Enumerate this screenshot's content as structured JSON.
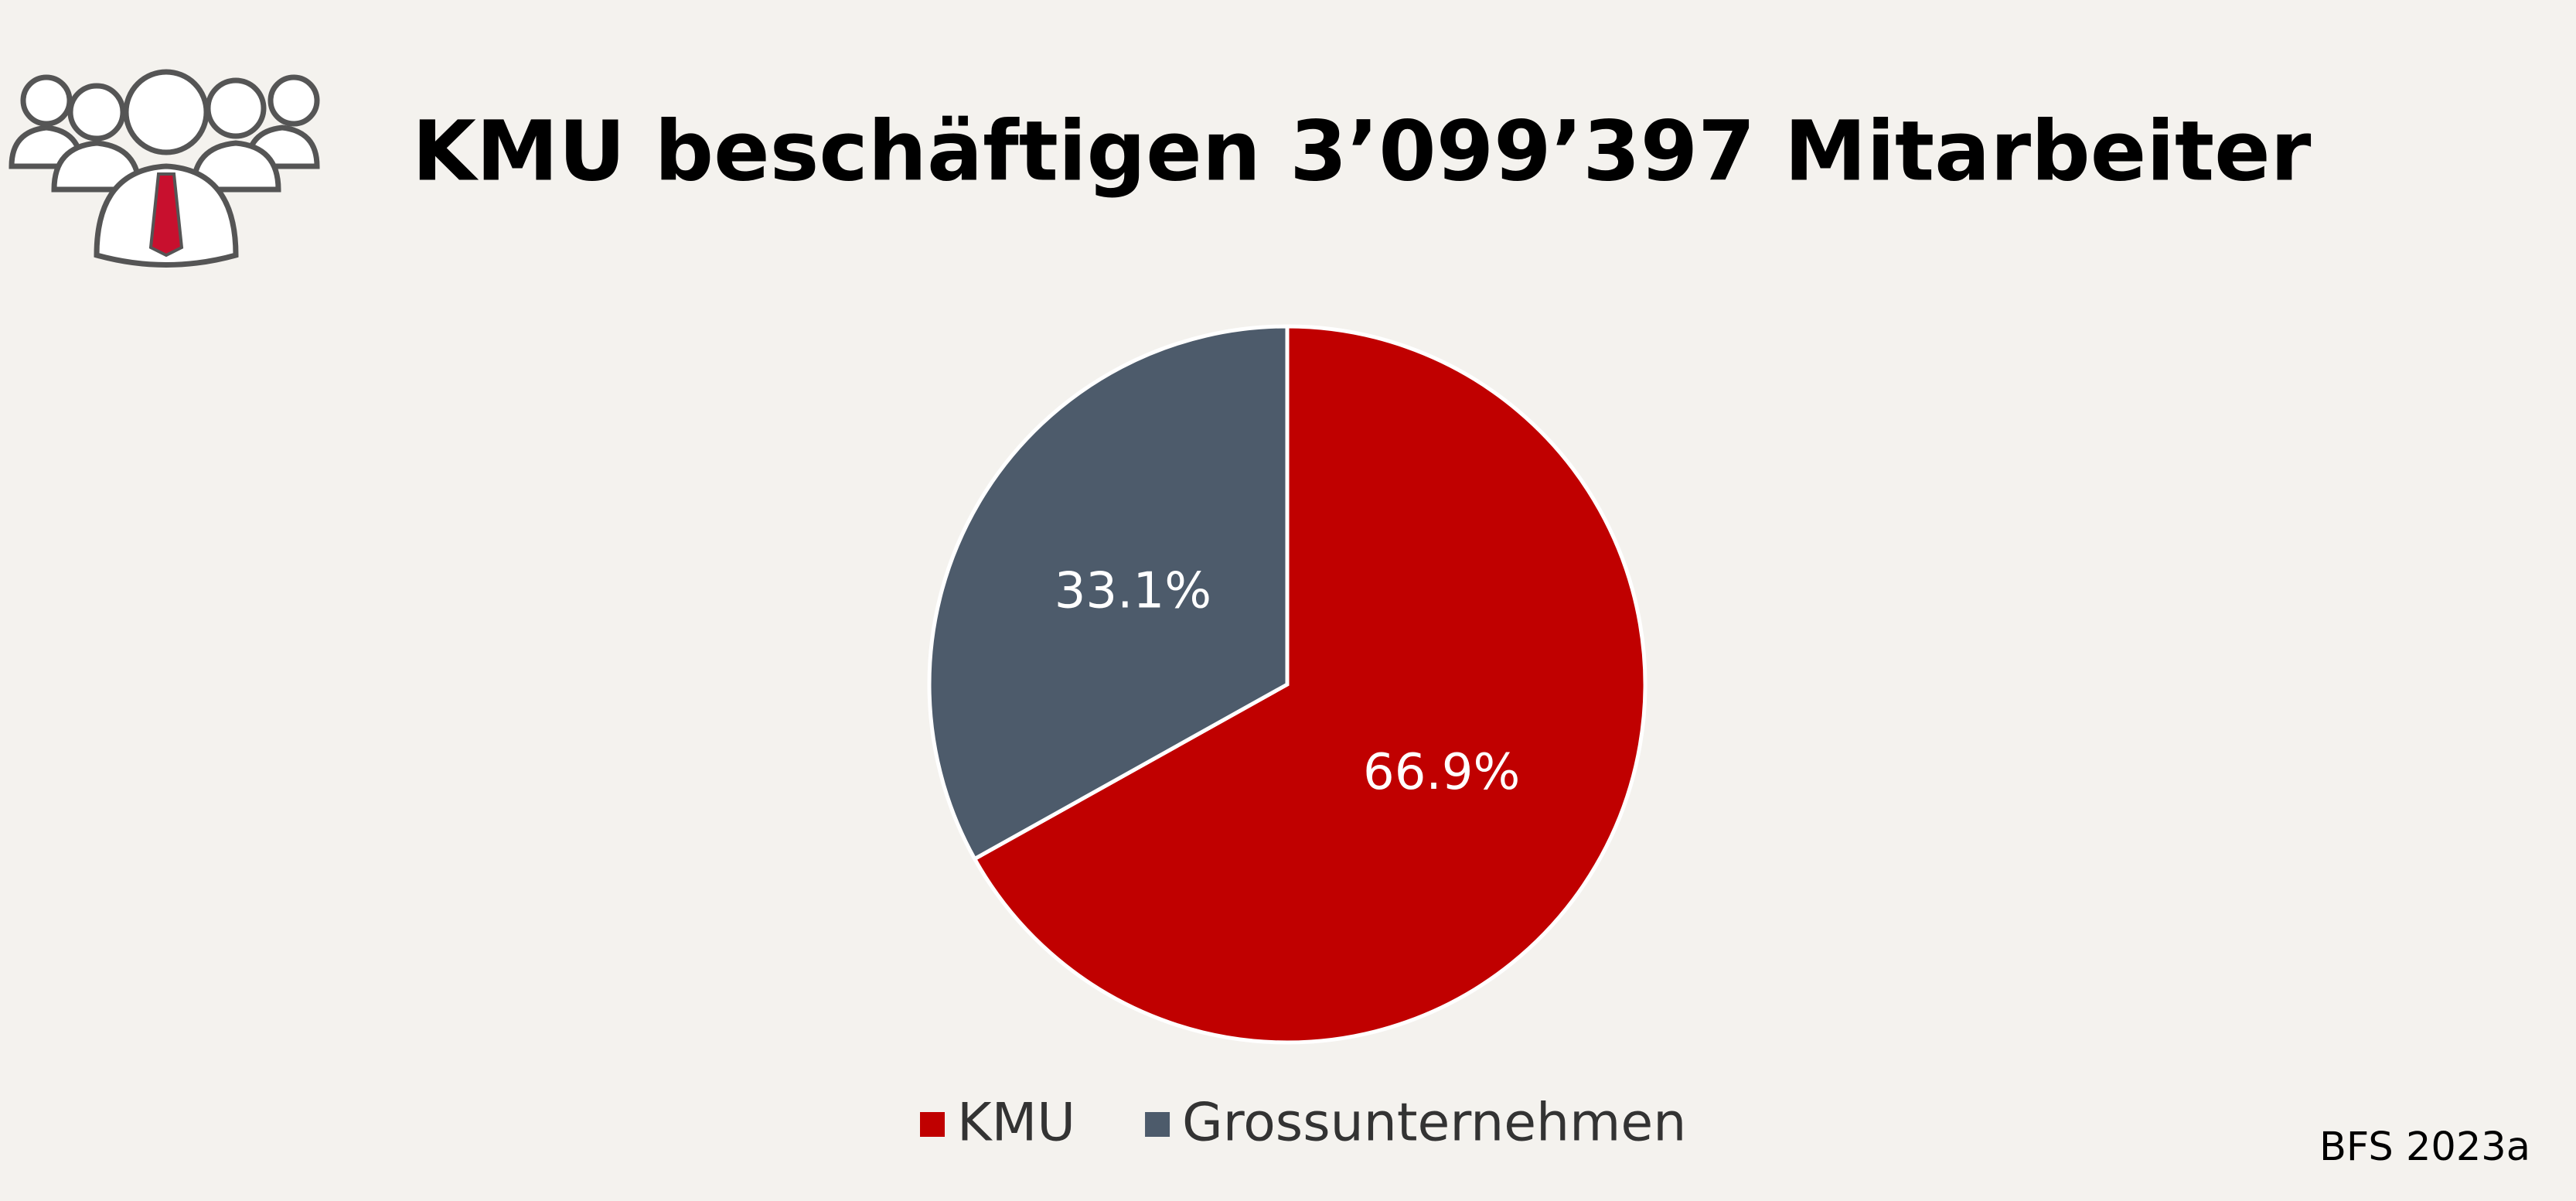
{
  "chart_data": {
    "type": "pie",
    "title": "KMU beschäftigen 3’099’397 Mitarbeiter",
    "categories": [
      "KMU",
      "Grossunternehmen"
    ],
    "values": [
      66.9,
      33.1
    ],
    "value_labels": [
      "66.9%",
      "33.1%"
    ],
    "colors": [
      "#c00000",
      "#4d5b6b"
    ],
    "source": "BFS 2023a"
  }
}
